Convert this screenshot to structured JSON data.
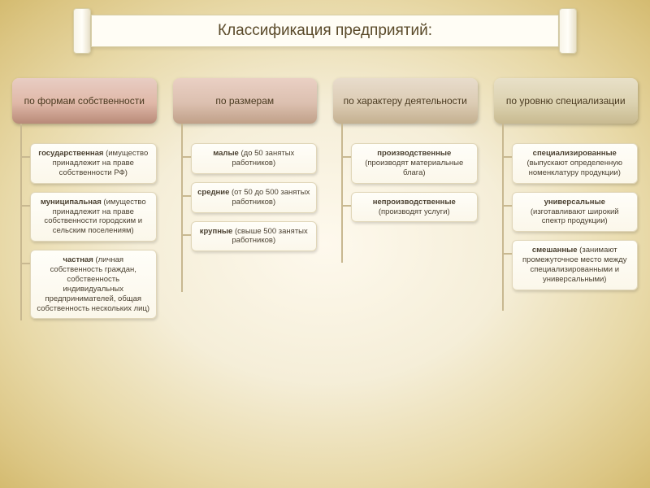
{
  "title": "Классификация предприятий:",
  "background": {
    "center": "#fef9ed",
    "edge": "#d4bb70"
  },
  "title_style": {
    "fontsize": 19,
    "color": "#5a4a2a",
    "bg": "#fffdf5",
    "border": "#d8cfa8"
  },
  "connector_color": "#c8b890",
  "item_style": {
    "bg_top": "#fffef9",
    "bg_bottom": "#fbf7ea",
    "border": "#e0d6b8",
    "fontsize": 9.5,
    "color": "#4a4030"
  },
  "categories": [
    {
      "key": "ownership",
      "label": "по формам собственности",
      "header_gradient": [
        "#e8cdc3",
        "#e0b8a8",
        "#b88a78"
      ],
      "header_fontsize": 12,
      "items": [
        {
          "bold": "государственная",
          "rest": " (имущество принадлежит на праве собственности РФ)"
        },
        {
          "bold": "муниципальная",
          "rest": " (имущество принадлежит на праве собственности городским и сельским поселениям)"
        },
        {
          "bold": "частная",
          "rest": " (личная собственность граждан, собственность индивидуальных предпринимателей, общая собственность нескольких лиц)"
        }
      ]
    },
    {
      "key": "size",
      "label": "по размерам",
      "header_gradient": [
        "#ead0c4",
        "#dcc0b0",
        "#c0a088"
      ],
      "header_fontsize": 12,
      "items": [
        {
          "bold": "малые",
          "rest": " (до 50 занятых работников)"
        },
        {
          "bold": "средние",
          "rest": " (от 50 до 500 занятых работников)"
        },
        {
          "bold": "крупные",
          "rest": " (свыше 500 занятых работников)"
        }
      ]
    },
    {
      "key": "activity",
      "label": "по характеру деятельности",
      "header_gradient": [
        "#e8dccc",
        "#dcccb4",
        "#c4b090"
      ],
      "header_fontsize": 12,
      "items": [
        {
          "bold": "производственные",
          "rest": " (производят материальные блага)"
        },
        {
          "bold": "непроизводственные",
          "rest": " (производят услуги)"
        }
      ]
    },
    {
      "key": "specialization",
      "label": "по уровню специализации",
      "header_gradient": [
        "#e8e0c8",
        "#dcd2b0",
        "#c8ba90"
      ],
      "header_fontsize": 12,
      "items": [
        {
          "bold": "специализированные",
          "rest": " (выпускают определенную номенклатуру продукции)"
        },
        {
          "bold": "универсальные",
          "rest": " (изготавливают широкий спектр продукции)"
        },
        {
          "bold": "смешанные",
          "rest": " (занимают промежуточное место между специализированными и универсальными)"
        }
      ]
    }
  ]
}
